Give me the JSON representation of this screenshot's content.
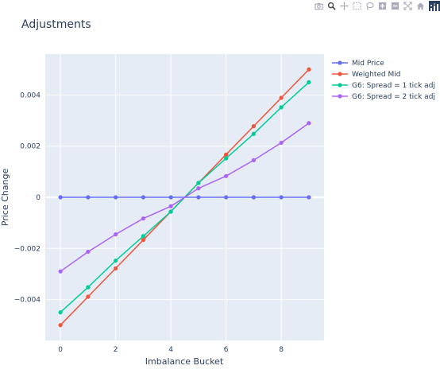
{
  "chart_data": {
    "type": "line",
    "title": "Adjustments",
    "xlabel": "Imbalance Bucket",
    "ylabel": "Price Change",
    "x": [
      0,
      1,
      2,
      3,
      4,
      5,
      6,
      7,
      8,
      9
    ],
    "xlim": [
      -0.55,
      9.55
    ],
    "ylim": [
      -0.0056,
      0.0056
    ],
    "xticks": [
      0,
      2,
      4,
      6,
      8
    ],
    "xtick_labels": [
      "0",
      "2",
      "4",
      "6",
      "8"
    ],
    "yticks": [
      -0.004,
      -0.002,
      0,
      0.002,
      0.004
    ],
    "ytick_labels": [
      "−0.004",
      "−0.002",
      "0",
      "0.002",
      "0.004"
    ],
    "grid": true,
    "legend_position": "top-right outside",
    "series": [
      {
        "name": "Mid Price",
        "color": "#636efa",
        "values": [
          0,
          0,
          0,
          0,
          0,
          0,
          0,
          0,
          0,
          0
        ]
      },
      {
        "name": "Weighted Mid",
        "color": "#ef553b",
        "values": [
          -0.005,
          -0.00389,
          -0.00278,
          -0.00167,
          -0.00056,
          0.00056,
          0.00167,
          0.00278,
          0.00389,
          0.005
        ]
      },
      {
        "name": "G6: Spread = 1 tick adj",
        "color": "#00cc96",
        "values": [
          -0.0045,
          -0.00352,
          -0.00248,
          -0.00152,
          -0.00056,
          0.00056,
          0.00152,
          0.00248,
          0.00352,
          0.0045
        ]
      },
      {
        "name": "G6: Spread = 2 tick adj",
        "color": "#ab63fa",
        "values": [
          -0.0029,
          -0.00213,
          -0.00145,
          -0.00083,
          -0.00035,
          0.00035,
          0.00083,
          0.00145,
          0.00213,
          0.0029
        ]
      }
    ]
  },
  "modebar": {
    "icons": [
      "camera-icon",
      "zoom-icon",
      "pan-icon",
      "box-select-icon",
      "lasso-icon",
      "zoom-in-icon",
      "zoom-out-icon",
      "autoscale-icon",
      "home-icon",
      "plotly-logo"
    ]
  }
}
